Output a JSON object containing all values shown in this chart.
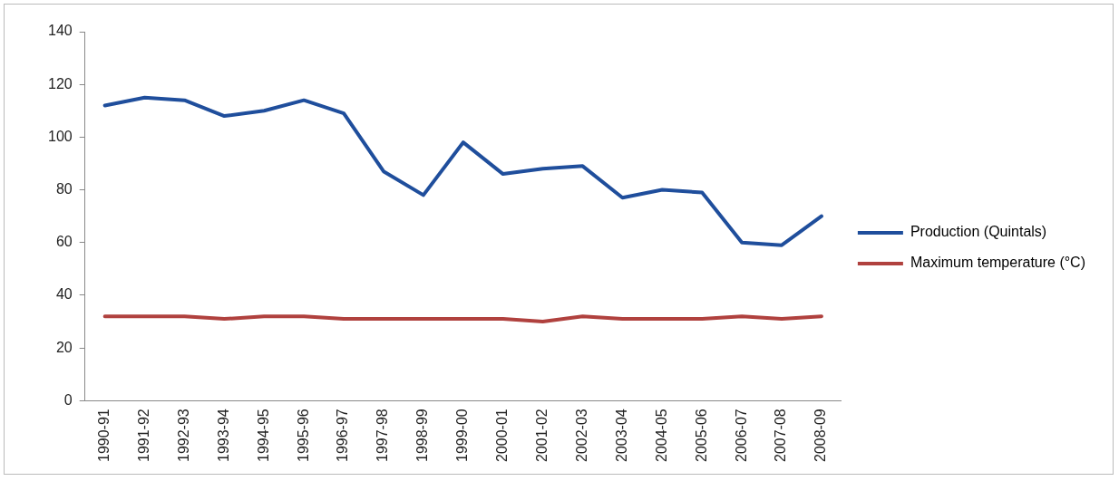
{
  "chart_data": {
    "type": "line",
    "categories": [
      "1990-91",
      "1991-92",
      "1992-93",
      "1993-94",
      "1994-95",
      "1995-96",
      "1996-97",
      "1997-98",
      "1998-99",
      "1999-00",
      "2000-01",
      "2001-02",
      "2002-03",
      "2003-04",
      "2004-05",
      "2005-06",
      "2006-07",
      "2007-08",
      "2008-09"
    ],
    "series": [
      {
        "name": "Production (Quintals)",
        "color": "#1f4e9c",
        "values": [
          112,
          115,
          114,
          108,
          110,
          114,
          109,
          87,
          78,
          98,
          86,
          88,
          89,
          77,
          80,
          79,
          60,
          59,
          70
        ]
      },
      {
        "name": "Maximum temperature (°C)",
        "color": "#b0413e",
        "values": [
          32,
          32,
          32,
          31,
          32,
          32,
          31,
          31,
          31,
          31,
          31,
          30,
          32,
          31,
          31,
          31,
          32,
          31,
          32
        ]
      }
    ],
    "ylim": [
      0,
      140
    ],
    "yticks": [
      0,
      20,
      40,
      60,
      80,
      100,
      120,
      140
    ],
    "grid": false,
    "legend": "right",
    "marker": "none",
    "line_style": "solid"
  }
}
